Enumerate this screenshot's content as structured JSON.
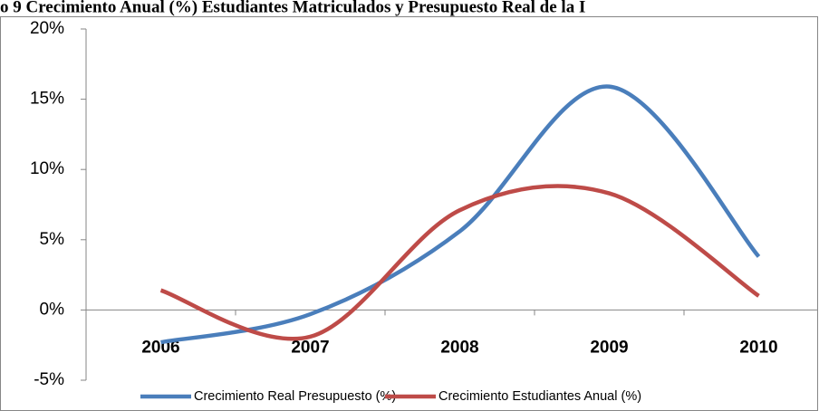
{
  "chart_data": {
    "type": "line",
    "title": "o 9 Crecimiento Anual (%) Estudiantes Matriculados y Presupuesto Real de la I",
    "categories": [
      "2006",
      "2007",
      "2008",
      "2009",
      "2010"
    ],
    "series": [
      {
        "name": "Crecimiento Real Presupuesto (%)",
        "color": "#4a7ebb",
        "values": [
          -2.3,
          -0.3,
          5.6,
          15.9,
          3.8
        ]
      },
      {
        "name": "Crecimiento Estudiantes Anual (%)",
        "color": "#be4b48",
        "values": [
          1.4,
          -1.9,
          7.1,
          8.3,
          1.0
        ]
      }
    ],
    "ylim": [
      -5,
      20
    ],
    "yticks": [
      {
        "value": -5,
        "label": "-5%"
      },
      {
        "value": 0,
        "label": "0%"
      },
      {
        "value": 5,
        "label": "5%"
      },
      {
        "value": 10,
        "label": "10%"
      },
      {
        "value": 15,
        "label": "15%"
      },
      {
        "value": 20,
        "label": "20%"
      }
    ],
    "grid": false,
    "legend": "bottom",
    "smooth": true
  }
}
